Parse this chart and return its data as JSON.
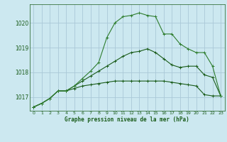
{
  "title": "Graphe pression niveau de la mer (hPa)",
  "background_color": "#cce8f0",
  "grid_color": "#aac8d8",
  "line_color_dark": "#1a5c1a",
  "line_color_light": "#2e7d2e",
  "xlim": [
    -0.5,
    23.5
  ],
  "ylim": [
    1016.45,
    1020.75
  ],
  "yticks": [
    1017,
    1018,
    1019,
    1020
  ],
  "xticks": [
    0,
    1,
    2,
    3,
    4,
    5,
    6,
    7,
    8,
    9,
    10,
    11,
    12,
    13,
    14,
    15,
    16,
    17,
    18,
    19,
    20,
    21,
    22,
    23
  ],
  "series1_x": [
    0,
    1,
    2,
    3,
    4,
    5,
    6,
    7,
    8,
    9,
    10,
    11,
    12,
    13,
    14,
    15,
    16,
    17,
    18,
    19,
    20,
    21,
    22,
    23
  ],
  "series1_y": [
    1016.6,
    1016.75,
    1016.95,
    1017.25,
    1017.25,
    1017.35,
    1017.45,
    1017.5,
    1017.55,
    1017.6,
    1017.65,
    1017.65,
    1017.65,
    1017.65,
    1017.65,
    1017.65,
    1017.65,
    1017.6,
    1017.55,
    1017.5,
    1017.45,
    1017.1,
    1017.05,
    1017.05
  ],
  "series2_x": [
    0,
    1,
    2,
    3,
    4,
    5,
    6,
    7,
    8,
    9,
    10,
    11,
    12,
    13,
    14,
    15,
    16,
    17,
    18,
    19,
    20,
    21,
    22,
    23
  ],
  "series2_y": [
    1016.6,
    1016.75,
    1016.95,
    1017.25,
    1017.25,
    1017.45,
    1017.65,
    1017.85,
    1018.05,
    1018.25,
    1018.45,
    1018.65,
    1018.8,
    1018.85,
    1018.95,
    1018.8,
    1018.55,
    1018.3,
    1018.2,
    1018.25,
    1018.25,
    1017.9,
    1017.8,
    1017.05
  ],
  "series3_x": [
    0,
    1,
    2,
    3,
    4,
    5,
    6,
    7,
    8,
    9,
    10,
    11,
    12,
    13,
    14,
    15,
    16,
    17,
    18,
    19,
    20,
    21,
    22,
    23
  ],
  "series3_y": [
    1016.6,
    1016.75,
    1016.95,
    1017.25,
    1017.25,
    1017.45,
    1017.75,
    1018.05,
    1018.4,
    1019.4,
    1020.0,
    1020.25,
    1020.3,
    1020.4,
    1020.3,
    1020.25,
    1019.55,
    1019.55,
    1019.15,
    1018.95,
    1018.8,
    1018.8,
    1018.25,
    1017.05
  ],
  "marker": "+"
}
